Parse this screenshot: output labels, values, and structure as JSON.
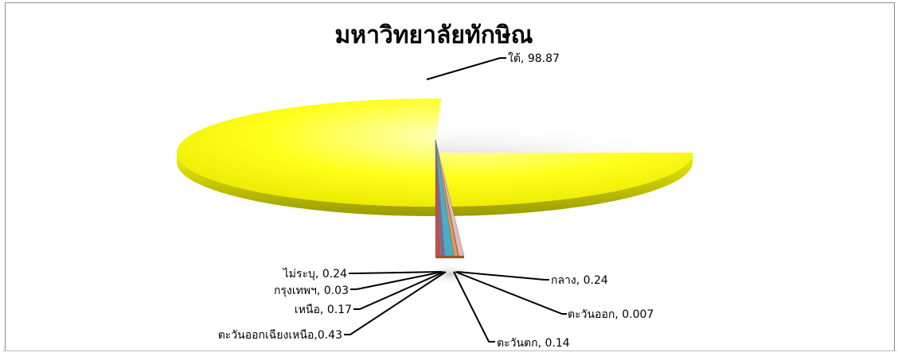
{
  "chart_data": {
    "type": "pie",
    "title": "มหาวิทยาลัยทักษิณ",
    "slices": [
      {
        "label": "ใต้",
        "value": 98.87,
        "text": "ใต้, 98.87",
        "color": "#ffff00"
      },
      {
        "label": "กลาง",
        "value": 0.24,
        "text": "กลาง, 0.24",
        "color": "#c0504d"
      },
      {
        "label": "ตะวันออก",
        "value": 0.007,
        "text": "ตะวันออก, 0.007",
        "color": "#9bbb59"
      },
      {
        "label": "ตะวันตก",
        "value": 0.14,
        "text": "ตะวันตก, 0.14",
        "color": "#8064a2"
      },
      {
        "label": "ตะวันออกเฉียงเหนือ",
        "value": 0.43,
        "text": "ตะวันออกเฉียงเหนือ,0.43",
        "color": "#4bacc6"
      },
      {
        "label": "เหนือ",
        "value": 0.17,
        "text": "เหนือ, 0.17",
        "color": "#f79646"
      },
      {
        "label": "กรุงเทพฯ",
        "value": 0.03,
        "text": "กรุงเทพฯ, 0.03",
        "color": "#4f81bd"
      },
      {
        "label": "ไม่ระบุ",
        "value": 0.24,
        "text": "ไม่ระบุ, 0.24",
        "color": "#e6b9b8"
      }
    ]
  }
}
